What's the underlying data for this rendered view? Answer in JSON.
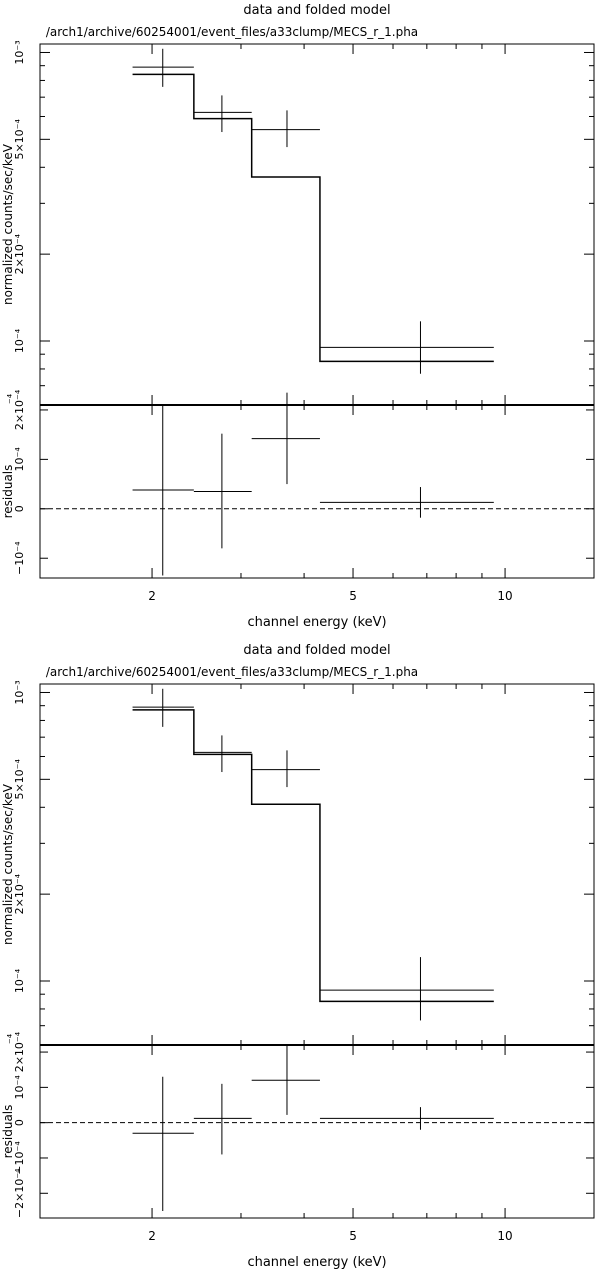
{
  "chart_data": [
    {
      "type": "line",
      "title": "data and folded model",
      "subtitle": "/arch1/archive/60254001/event_files/a33clump/MECS_r_1.pha",
      "xlabel": "channel energy (keV)",
      "x_scale": "log",
      "xlim": [
        1.2,
        15
      ],
      "xticks": [
        2,
        5,
        10
      ],
      "ylabel": "normalized counts/sec/keV",
      "y_scale": "log",
      "ylim": [
        6e-05,
        0.00107
      ],
      "yticks": [
        0.001,
        0.0005,
        0.0002,
        0.0001
      ],
      "ytick_labels": [
        "10⁻³",
        "5×10⁻⁴",
        "2×10⁻⁴",
        "10⁻⁴"
      ],
      "ytick_extra_label": "⁻⁴",
      "data": [
        {
          "x": 2.1,
          "xlo": 1.83,
          "xhi": 2.42,
          "y": 0.00089,
          "ylo": 0.00076,
          "yhi": 0.00103
        },
        {
          "x": 2.75,
          "xlo": 2.42,
          "xhi": 3.15,
          "y": 0.00062,
          "ylo": 0.00053,
          "yhi": 0.00071
        },
        {
          "x": 3.7,
          "xlo": 3.15,
          "xhi": 4.3,
          "y": 0.00054,
          "ylo": 0.00047,
          "yhi": 0.00063
        },
        {
          "x": 6.8,
          "xlo": 4.3,
          "xhi": 9.5,
          "y": 9.5e-05,
          "ylo": 7.7e-05,
          "yhi": 0.000117
        }
      ],
      "model": [
        {
          "xlo": 1.83,
          "xhi": 2.42,
          "y": 0.00084
        },
        {
          "xlo": 2.42,
          "xhi": 3.15,
          "y": 0.00059
        },
        {
          "xlo": 3.15,
          "xhi": 4.3,
          "y": 0.00037
        },
        {
          "xlo": 4.3,
          "xhi": 9.5,
          "y": 8.5e-05
        }
      ],
      "residuals": {
        "ylabel": "residuals",
        "ylim": [
          -0.00014,
          0.00021
        ],
        "yticks": [
          0.0002,
          0.0001,
          0,
          -0.0001
        ],
        "ytick_labels": [
          "2×10⁻⁴",
          "10⁻⁴",
          "0",
          "−10⁻⁴"
        ],
        "zero_line": "dashed",
        "points": [
          {
            "x": 2.1,
            "xlo": 1.83,
            "xhi": 2.42,
            "y": 3.8e-05,
            "ylo": -0.000135,
            "yhi": 0.00021
          },
          {
            "x": 2.75,
            "xlo": 2.42,
            "xhi": 3.15,
            "y": 3.5e-05,
            "ylo": -8e-05,
            "yhi": 0.000152
          },
          {
            "x": 3.7,
            "xlo": 3.15,
            "xhi": 4.3,
            "y": 0.000142,
            "ylo": 5e-05,
            "yhi": 0.000235
          },
          {
            "x": 6.8,
            "xlo": 4.3,
            "xhi": 9.5,
            "y": 1.3e-05,
            "ylo": -1.8e-05,
            "yhi": 4.4e-05
          }
        ]
      }
    },
    {
      "type": "line",
      "title": "data and folded model",
      "subtitle": "/arch1/archive/60254001/event_files/a33clump/MECS_r_1.pha",
      "xlabel": "channel energy (keV)",
      "x_scale": "log",
      "xlim": [
        1.2,
        15
      ],
      "xticks": [
        2,
        5,
        10
      ],
      "ylabel": "normalized counts/sec/keV",
      "y_scale": "log",
      "ylim": [
        6e-05,
        0.00107
      ],
      "yticks": [
        0.001,
        0.0005,
        0.0002,
        0.0001
      ],
      "ytick_labels": [
        "10⁻³",
        "5×10⁻⁴",
        "2×10⁻⁴",
        "10⁻⁴"
      ],
      "ytick_extra_label": "⁻⁴",
      "data": [
        {
          "x": 2.1,
          "xlo": 1.83,
          "xhi": 2.42,
          "y": 0.00089,
          "ylo": 0.00076,
          "yhi": 0.00103
        },
        {
          "x": 2.75,
          "xlo": 2.42,
          "xhi": 3.15,
          "y": 0.00062,
          "ylo": 0.00053,
          "yhi": 0.00071
        },
        {
          "x": 3.7,
          "xlo": 3.15,
          "xhi": 4.3,
          "y": 0.00054,
          "ylo": 0.00047,
          "yhi": 0.00063
        },
        {
          "x": 6.8,
          "xlo": 4.3,
          "xhi": 9.5,
          "y": 9.3e-05,
          "ylo": 7.3e-05,
          "yhi": 0.000121
        }
      ],
      "model": [
        {
          "xlo": 1.83,
          "xhi": 2.42,
          "y": 0.00087
        },
        {
          "xlo": 2.42,
          "xhi": 3.15,
          "y": 0.00061
        },
        {
          "xlo": 3.15,
          "xhi": 4.3,
          "y": 0.00041
        },
        {
          "xlo": 4.3,
          "xhi": 9.5,
          "y": 8.5e-05
        }
      ],
      "residuals": {
        "ylabel": "residuals",
        "ylim": [
          -0.00027,
          0.00022
        ],
        "yticks": [
          0.0002,
          0.0001,
          0,
          -0.0001,
          -0.0002
        ],
        "ytick_labels": [
          "2×10⁻⁴",
          "10⁻⁴",
          "0",
          "−10⁻⁴",
          "−2×10⁻⁴"
        ],
        "zero_line": "dashed",
        "points": [
          {
            "x": 2.1,
            "xlo": 1.83,
            "xhi": 2.42,
            "y": -3e-05,
            "ylo": -0.00025,
            "yhi": 0.00013
          },
          {
            "x": 2.75,
            "xlo": 2.42,
            "xhi": 3.15,
            "y": 1.2e-05,
            "ylo": -9e-05,
            "yhi": 0.00011
          },
          {
            "x": 3.7,
            "xlo": 3.15,
            "xhi": 4.3,
            "y": 0.00012,
            "ylo": 2.2e-05,
            "yhi": 0.00022
          },
          {
            "x": 6.8,
            "xlo": 4.3,
            "xhi": 9.5,
            "y": 1.2e-05,
            "ylo": -2e-05,
            "yhi": 4.4e-05
          }
        ]
      }
    }
  ]
}
